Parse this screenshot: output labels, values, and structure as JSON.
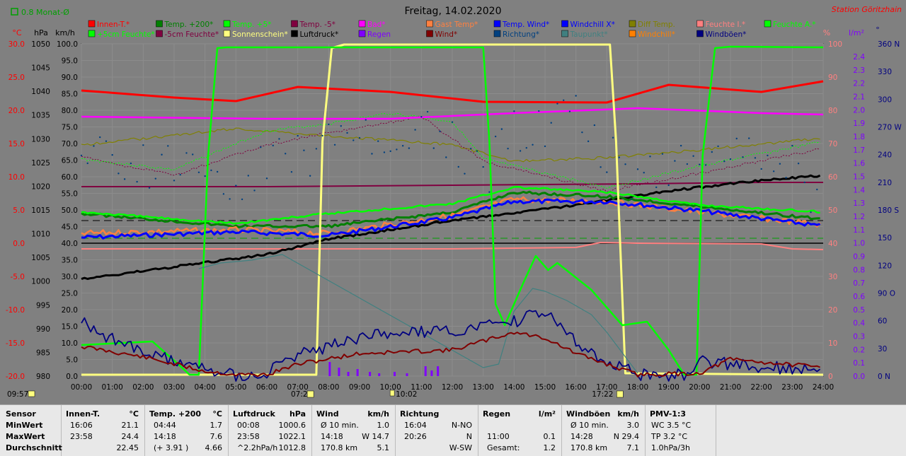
{
  "chart_data": {
    "type": "line",
    "title": "Freitag, 14.02.2020",
    "station": "Station Göritzhain",
    "month_avg_label": "0.8 Monat-Ø",
    "legend": [
      {
        "label": "Innen-T.*",
        "color": "#ff0000"
      },
      {
        "label": "Temp. +200*",
        "color": "#008000"
      },
      {
        "label": "Temp. +5*",
        "color": "#00ff00"
      },
      {
        "label": "Temp. -5*",
        "color": "#800040"
      },
      {
        "label": "Bad*",
        "color": "#ff00ff"
      },
      {
        "label": "Gast Temp*",
        "color": "#ff8040"
      },
      {
        "label": "Temp. Wind*",
        "color": "#0000ff"
      },
      {
        "label": "Windchill X*",
        "color": "#0000ff"
      },
      {
        "label": "Diff Temp.",
        "color": "#808000"
      },
      {
        "label": "Feuchte I.*",
        "color": "#ff8080"
      },
      {
        "label": "Feuchte A.*",
        "color": "#00ff00"
      },
      {
        "label": "+5cm Feuchte*",
        "color": "#00ff00"
      },
      {
        "label": "-5cm Feuchte*",
        "color": "#800040"
      },
      {
        "label": "Sonnenschein*",
        "color": "#ffff80"
      },
      {
        "label": "Luftdruck*",
        "color": "#000000"
      },
      {
        "label": "Regen",
        "color": "#8000ff"
      },
      {
        "label": "Wind*",
        "color": "#800000"
      },
      {
        "label": "Richtung*",
        "color": "#004080"
      },
      {
        "label": "Taupunkt*",
        "color": "#408080"
      },
      {
        "label": "Windchill*",
        "color": "#ff8000"
      },
      {
        "label": "Windböen*",
        "color": "#000080"
      }
    ],
    "axes": {
      "temp": {
        "label": "°C",
        "ticks": [
          "30.0",
          "25.0",
          "20.0",
          "15.0",
          "10.0",
          "5.0",
          "0.0",
          "-5.0",
          "-10.0",
          "-15.0",
          "-20.0"
        ],
        "color": "#ff0000"
      },
      "pressure": {
        "label": "hPa",
        "ticks": [
          "1050",
          "1045",
          "1040",
          "1035",
          "1030",
          "1025",
          "1020",
          "1015",
          "1010",
          "1005",
          "1000",
          "995",
          "990",
          "985",
          "980"
        ],
        "color": "#000000"
      },
      "wind": {
        "label": "km/h",
        "ticks": [
          "100.0",
          "95.0",
          "90.0",
          "85.0",
          "80.0",
          "75.0",
          "70.0",
          "65.0",
          "60.0",
          "55.0",
          "50.0",
          "45.0",
          "40.0",
          "35.0",
          "30.0",
          "25.0",
          "20.0",
          "15.0",
          "10.0",
          "5.0",
          "0.0"
        ],
        "color": "#000000"
      },
      "humidity": {
        "label": "%",
        "ticks": [
          "100",
          "90",
          "80",
          "70",
          "60",
          "50",
          "40",
          "30",
          "20",
          "10",
          "0"
        ],
        "color": "#ff8080"
      },
      "rain": {
        "label": "l/m²",
        "ticks": [
          "2.4",
          "2.3",
          "2.2",
          "2.1",
          "2.0",
          "1.9",
          "1.8",
          "1.7",
          "1.6",
          "1.5",
          "1.4",
          "1.3",
          "1.2",
          "1.1",
          "1.0",
          "0.9",
          "0.8",
          "0.7",
          "0.6",
          "0.5",
          "0.4",
          "0.3",
          "0.2",
          "0.1",
          "0.0"
        ],
        "color": "#8000ff"
      },
      "direction": {
        "label": "°",
        "ticks": [
          "360 N",
          "330",
          "300",
          "270 W",
          "240",
          "210",
          "180 S",
          "150",
          "120",
          "90 O",
          "60",
          "30",
          "0 N"
        ],
        "color": "#000080"
      },
      "time": {
        "ticks": [
          "00:00",
          "01:00",
          "02:00",
          "03:00",
          "04:00",
          "05:00",
          "06:00",
          "07:00",
          "08:00",
          "09:00",
          "10:00",
          "11:00",
          "12:00",
          "13:00",
          "14:00",
          "15:00",
          "16:00",
          "17:00",
          "18:00",
          "19:00",
          "20:00",
          "21:00",
          "22:00",
          "23:00",
          "24:00"
        ]
      }
    },
    "sun_markers": {
      "moonrise": "09:57",
      "sunrise": "07:24",
      "noon": "10:02",
      "sunset": "17:22"
    }
  },
  "stats": {
    "sensor": {
      "header": "Sensor",
      "rows": [
        "MinWert",
        "MaxWert",
        "Durchschnitt"
      ]
    },
    "innen": {
      "header": "Innen-T.",
      "unit": "°C",
      "rows": [
        [
          "16:06",
          "21.1"
        ],
        [
          "23:58",
          "24.4"
        ],
        [
          "",
          "22.45"
        ]
      ]
    },
    "temp200": {
      "header": "Temp. +200",
      "unit": "°C",
      "rows": [
        [
          "04:44",
          "1.7"
        ],
        [
          "14:18",
          "7.6"
        ],
        [
          "(+ 3.91 )",
          "4.66"
        ]
      ]
    },
    "luftdruck": {
      "header": "Luftdruck",
      "unit": "hPa",
      "rows": [
        [
          "00:08",
          "1000.6"
        ],
        [
          "23:58",
          "1022.1"
        ],
        [
          "^2.2hPa/h",
          "1012.8"
        ]
      ]
    },
    "wind": {
      "header": "Wind",
      "unit": "km/h",
      "rows": [
        [
          "Ø 10 min.",
          "1.0"
        ],
        [
          "14:18",
          "W 14.7"
        ],
        [
          "170.8 km",
          "5.1"
        ]
      ]
    },
    "richtung": {
      "header": "Richtung",
      "rows": [
        [
          "16:04",
          "N-NO"
        ],
        [
          "20:26",
          "N"
        ],
        [
          "",
          "W-SW"
        ]
      ]
    },
    "regen": {
      "header": "Regen",
      "unit": "l/m²",
      "rows": [
        [
          "",
          ""
        ],
        [
          "11:00",
          "0.1"
        ],
        [
          "Gesamt:",
          "1.2"
        ]
      ]
    },
    "windboeen": {
      "header": "Windböen",
      "unit": "km/h",
      "rows": [
        [
          "Ø 10 min.",
          "3.0"
        ],
        [
          "14:28",
          "N 29.4"
        ],
        [
          "170.8 km",
          "7.1"
        ]
      ]
    },
    "pmv": {
      "header": "PMV-1:3",
      "rows": [
        "WC 3.5 °C",
        "TP 3.2 °C",
        "1.0hPa/3h"
      ]
    }
  }
}
